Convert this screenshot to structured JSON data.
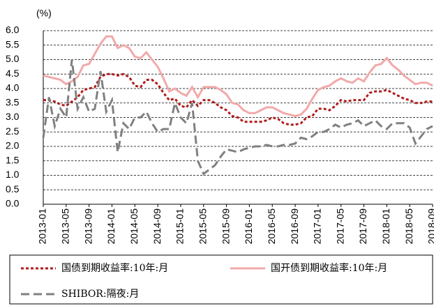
{
  "chart_data": {
    "type": "line",
    "y_label": "(%)",
    "categories": [
      "2013-01",
      null,
      null,
      null,
      "2013-05",
      null,
      null,
      null,
      "2013-09",
      null,
      null,
      null,
      "2014-01",
      null,
      null,
      null,
      "2014-05",
      null,
      null,
      null,
      "2014-09",
      null,
      null,
      null,
      "2015-01",
      null,
      null,
      null,
      "2015-05",
      null,
      null,
      null,
      "2015-09",
      null,
      null,
      null,
      "2016-01",
      null,
      null,
      null,
      "2016-05",
      null,
      null,
      null,
      "2016-09",
      null,
      null,
      null,
      "2017-01",
      null,
      null,
      null,
      "2017-05",
      null,
      null,
      null,
      "2017-09",
      null,
      null,
      null,
      "2018-01",
      null,
      null,
      null,
      "2018-05",
      null,
      null,
      null,
      "2018-09"
    ],
    "series": [
      {
        "name": "国债到期收益率:10年:月",
        "color": "#b01c1c",
        "dash": "4,3",
        "values": [
          3.6,
          3.6,
          3.55,
          3.45,
          3.4,
          3.55,
          3.7,
          3.95,
          4.0,
          4.05,
          4.4,
          4.5,
          4.5,
          4.45,
          4.5,
          4.4,
          4.1,
          4.05,
          4.3,
          4.3,
          4.15,
          3.85,
          3.6,
          3.65,
          3.4,
          3.35,
          3.6,
          3.4,
          3.6,
          3.6,
          3.5,
          3.35,
          3.25,
          3.05,
          3.0,
          2.85,
          2.85,
          2.85,
          2.85,
          2.9,
          3.0,
          2.95,
          2.8,
          2.75,
          2.75,
          2.8,
          3.0,
          3.05,
          3.3,
          3.3,
          3.25,
          3.4,
          3.6,
          3.55,
          3.6,
          3.6,
          3.6,
          3.85,
          3.9,
          3.9,
          3.95,
          3.85,
          3.75,
          3.65,
          3.6,
          3.5,
          3.5,
          3.55,
          3.55
        ]
      },
      {
        "name": "国开债到期收益率:10年:月",
        "color": "#f2a9a9",
        "dash": "none",
        "values": [
          4.45,
          4.4,
          4.35,
          4.3,
          4.15,
          4.25,
          4.4,
          4.8,
          4.85,
          5.2,
          5.55,
          5.8,
          5.8,
          5.4,
          5.5,
          5.4,
          5.1,
          5.05,
          5.25,
          5.0,
          4.75,
          4.35,
          3.9,
          4.0,
          3.85,
          3.75,
          4.05,
          3.7,
          4.05,
          4.05,
          4.05,
          3.95,
          3.8,
          3.5,
          3.45,
          3.25,
          3.15,
          3.15,
          3.25,
          3.35,
          3.35,
          3.25,
          3.15,
          3.1,
          3.05,
          3.1,
          3.3,
          3.65,
          3.95,
          4.05,
          4.1,
          4.25,
          4.35,
          4.25,
          4.2,
          4.35,
          4.25,
          4.55,
          4.8,
          4.85,
          5.05,
          4.8,
          4.65,
          4.45,
          4.3,
          4.15,
          4.2,
          4.2,
          4.1
        ]
      },
      {
        "name": "SHIBOR:隔夜:月",
        "color": "#808080",
        "dash": "12,6",
        "values": [
          2.3,
          3.7,
          2.7,
          3.3,
          3.0,
          5.0,
          3.3,
          3.7,
          3.2,
          3.3,
          4.6,
          3.2,
          3.6,
          1.8,
          2.8,
          2.6,
          3.0,
          3.0,
          3.2,
          2.8,
          2.5,
          2.6,
          2.6,
          3.5,
          3.0,
          2.8,
          3.5,
          1.5,
          1.05,
          1.2,
          1.35,
          1.65,
          1.9,
          1.85,
          1.8,
          1.9,
          1.95,
          2.0,
          2.0,
          2.05,
          2.0,
          2.0,
          2.05,
          2.05,
          2.1,
          2.3,
          2.25,
          2.35,
          2.5,
          2.5,
          2.6,
          2.75,
          2.65,
          2.75,
          2.8,
          2.9,
          2.7,
          2.8,
          2.9,
          2.7,
          2.6,
          2.8,
          2.8,
          2.8,
          2.65,
          2.1,
          2.35,
          2.6,
          2.7
        ]
      }
    ],
    "ylim": [
      0,
      6
    ],
    "yticks": [
      {
        "value": 0,
        "label": "0.0"
      },
      {
        "value": 0.5,
        "label": "0.5"
      },
      {
        "value": 1,
        "label": "1.0"
      },
      {
        "value": 1.5,
        "label": "1.5"
      },
      {
        "value": 2,
        "label": "2.0"
      },
      {
        "value": 2.5,
        "label": "2.5"
      },
      {
        "value": 3,
        "label": "3.0"
      },
      {
        "value": 3.5,
        "label": "3.5"
      },
      {
        "value": 4,
        "label": "4.0"
      },
      {
        "value": 4.5,
        "label": "4.5"
      },
      {
        "value": 5,
        "label": "5.0"
      },
      {
        "value": 5.5,
        "label": "5.5"
      },
      {
        "value": 6,
        "label": "6.0"
      }
    ],
    "grid": true
  }
}
